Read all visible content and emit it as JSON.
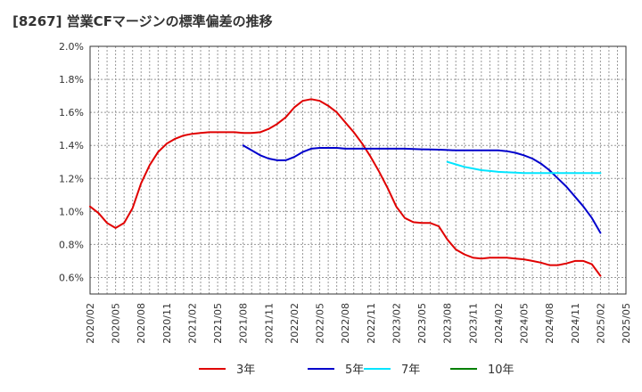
{
  "chart_data": {
    "type": "line",
    "title": "[8267]  営業CFマージンの標準偏差の推移",
    "xlabel": "",
    "ylabel": "",
    "ylim": [
      0.5,
      2.0
    ],
    "yticks": [
      "0.6%",
      "0.8%",
      "1.0%",
      "1.2%",
      "1.4%",
      "1.6%",
      "1.8%",
      "2.0%"
    ],
    "ytick_values": [
      0.6,
      0.8,
      1.0,
      1.2,
      1.4,
      1.6,
      1.8,
      2.0
    ],
    "xlim": [
      "2020/02",
      "2025/05"
    ],
    "xticks": [
      "2020/02",
      "2020/05",
      "2020/08",
      "2020/11",
      "2021/02",
      "2021/05",
      "2021/08",
      "2021/11",
      "2022/02",
      "2022/05",
      "2022/08",
      "2022/11",
      "2023/02",
      "2023/05",
      "2023/08",
      "2023/11",
      "2024/02",
      "2024/05",
      "2024/08",
      "2024/11",
      "2025/02",
      "2025/05"
    ],
    "grid": true,
    "legend_position": "bottom",
    "series": [
      {
        "name": "3年",
        "color": "#e00000",
        "points": [
          [
            "2020/02",
            1.03
          ],
          [
            "2020/03",
            0.99
          ],
          [
            "2020/04",
            0.93
          ],
          [
            "2020/05",
            0.9
          ],
          [
            "2020/06",
            0.93
          ],
          [
            "2020/07",
            1.02
          ],
          [
            "2020/08",
            1.17
          ],
          [
            "2020/09",
            1.28
          ],
          [
            "2020/10",
            1.36
          ],
          [
            "2020/11",
            1.41
          ],
          [
            "2020/12",
            1.44
          ],
          [
            "2021/01",
            1.46
          ],
          [
            "2021/02",
            1.47
          ],
          [
            "2021/03",
            1.475
          ],
          [
            "2021/04",
            1.48
          ],
          [
            "2021/05",
            1.48
          ],
          [
            "2021/06",
            1.48
          ],
          [
            "2021/07",
            1.48
          ],
          [
            "2021/08",
            1.475
          ],
          [
            "2021/09",
            1.475
          ],
          [
            "2021/10",
            1.48
          ],
          [
            "2021/11",
            1.5
          ],
          [
            "2021/12",
            1.53
          ],
          [
            "2022/01",
            1.57
          ],
          [
            "2022/02",
            1.63
          ],
          [
            "2022/03",
            1.67
          ],
          [
            "2022/04",
            1.68
          ],
          [
            "2022/05",
            1.67
          ],
          [
            "2022/06",
            1.64
          ],
          [
            "2022/07",
            1.6
          ],
          [
            "2022/08",
            1.54
          ],
          [
            "2022/09",
            1.48
          ],
          [
            "2022/10",
            1.41
          ],
          [
            "2022/11",
            1.33
          ],
          [
            "2022/12",
            1.24
          ],
          [
            "2023/01",
            1.14
          ],
          [
            "2023/02",
            1.03
          ],
          [
            "2023/03",
            0.96
          ],
          [
            "2023/04",
            0.935
          ],
          [
            "2023/05",
            0.93
          ],
          [
            "2023/06",
            0.93
          ],
          [
            "2023/07",
            0.91
          ],
          [
            "2023/08",
            0.83
          ],
          [
            "2023/09",
            0.77
          ],
          [
            "2023/10",
            0.74
          ],
          [
            "2023/11",
            0.72
          ],
          [
            "2023/12",
            0.715
          ],
          [
            "2024/01",
            0.72
          ],
          [
            "2024/02",
            0.72
          ],
          [
            "2024/03",
            0.72
          ],
          [
            "2024/04",
            0.715
          ],
          [
            "2024/05",
            0.71
          ],
          [
            "2024/06",
            0.7
          ],
          [
            "2024/07",
            0.69
          ],
          [
            "2024/08",
            0.675
          ],
          [
            "2024/09",
            0.675
          ],
          [
            "2024/10",
            0.685
          ],
          [
            "2024/11",
            0.7
          ],
          [
            "2024/12",
            0.7
          ],
          [
            "2025/01",
            0.68
          ],
          [
            "2025/02",
            0.61
          ]
        ]
      },
      {
        "name": "5年",
        "color": "#0000cc",
        "points": [
          [
            "2021/08",
            1.4
          ],
          [
            "2021/09",
            1.37
          ],
          [
            "2021/10",
            1.34
          ],
          [
            "2021/11",
            1.32
          ],
          [
            "2021/12",
            1.31
          ],
          [
            "2022/01",
            1.31
          ],
          [
            "2022/02",
            1.33
          ],
          [
            "2022/03",
            1.36
          ],
          [
            "2022/04",
            1.38
          ],
          [
            "2022/05",
            1.385
          ],
          [
            "2022/06",
            1.385
          ],
          [
            "2022/07",
            1.385
          ],
          [
            "2022/08",
            1.38
          ],
          [
            "2022/09",
            1.38
          ],
          [
            "2022/10",
            1.38
          ],
          [
            "2022/11",
            1.38
          ],
          [
            "2022/12",
            1.38
          ],
          [
            "2023/01",
            1.38
          ],
          [
            "2023/02",
            1.38
          ],
          [
            "2023/03",
            1.38
          ],
          [
            "2023/04",
            1.378
          ],
          [
            "2023/05",
            1.376
          ],
          [
            "2023/06",
            1.375
          ],
          [
            "2023/07",
            1.374
          ],
          [
            "2023/08",
            1.372
          ],
          [
            "2023/09",
            1.37
          ],
          [
            "2023/10",
            1.37
          ],
          [
            "2023/11",
            1.37
          ],
          [
            "2023/12",
            1.37
          ],
          [
            "2024/01",
            1.37
          ],
          [
            "2024/02",
            1.37
          ],
          [
            "2024/03",
            1.365
          ],
          [
            "2024/04",
            1.355
          ],
          [
            "2024/05",
            1.34
          ],
          [
            "2024/06",
            1.32
          ],
          [
            "2024/07",
            1.29
          ],
          [
            "2024/08",
            1.25
          ],
          [
            "2024/09",
            1.2
          ],
          [
            "2024/10",
            1.15
          ],
          [
            "2024/11",
            1.09
          ],
          [
            "2024/12",
            1.03
          ],
          [
            "2025/01",
            0.96
          ],
          [
            "2025/02",
            0.87
          ]
        ]
      },
      {
        "name": "7年",
        "color": "#00e5ff",
        "points": [
          [
            "2023/08",
            1.3
          ],
          [
            "2023/09",
            1.285
          ],
          [
            "2023/10",
            1.27
          ],
          [
            "2023/11",
            1.26
          ],
          [
            "2023/12",
            1.25
          ],
          [
            "2024/01",
            1.245
          ],
          [
            "2024/02",
            1.24
          ],
          [
            "2024/03",
            1.237
          ],
          [
            "2024/04",
            1.235
          ],
          [
            "2024/05",
            1.233
          ],
          [
            "2024/06",
            1.232
          ],
          [
            "2024/07",
            1.232
          ],
          [
            "2024/08",
            1.232
          ],
          [
            "2024/09",
            1.232
          ],
          [
            "2024/10",
            1.232
          ],
          [
            "2024/11",
            1.232
          ],
          [
            "2024/12",
            1.232
          ],
          [
            "2025/01",
            1.232
          ],
          [
            "2025/02",
            1.232
          ]
        ]
      },
      {
        "name": "10年",
        "color": "#008000",
        "points": []
      }
    ]
  }
}
